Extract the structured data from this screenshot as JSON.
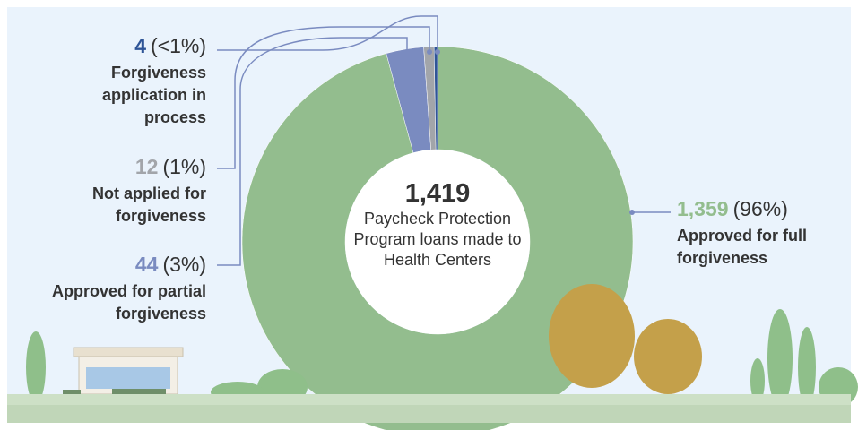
{
  "chart_data": {
    "type": "donut",
    "center_value": "1,419",
    "center_text": "Paycheck Protection Program loans made to Health Centers",
    "categories": [
      "Approved for full forgiveness",
      "Approved for partial forgiveness",
      "Not applied for forgiveness",
      "Forgiveness application in process"
    ],
    "values": [
      1359,
      44,
      12,
      4
    ],
    "value_labels": [
      "1,359",
      "44",
      "12",
      "4"
    ],
    "percent_labels": [
      "(96%)",
      "(3%)",
      "(1%)",
      "(<1%)"
    ],
    "colors": [
      "#93bd8e",
      "#7a8bc0",
      "#a2a5aa",
      "#2f5597"
    ]
  }
}
